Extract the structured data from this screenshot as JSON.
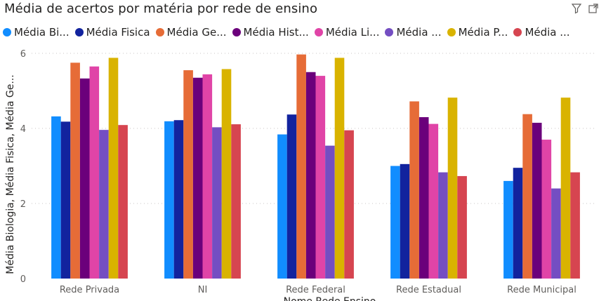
{
  "title": "Média de acertos por matéria por rede de ensino",
  "header_icons": [
    "filter-icon",
    "focus-mode-icon"
  ],
  "legend": [
    "Média Bi...",
    "Média Fisica",
    "Média Ge...",
    "Média Hist...",
    "Média Li...",
    "Média ...",
    "Média P...",
    "Média ..."
  ],
  "chart_data": {
    "type": "bar",
    "categories": [
      "Rede Privada",
      "NI",
      "Rede Federal",
      "Rede Estadual",
      "Rede Municipal"
    ],
    "ylabel": "Média Biologia, Média Fisica, Média Ge...",
    "xlabel": "Nome Rede Ensino",
    "ylim": [
      0,
      6
    ],
    "yticks": [
      0,
      2,
      4,
      6
    ],
    "grid": true,
    "legend_position": "top-left",
    "series": [
      {
        "color": "#118DFF",
        "values": [
          4.32,
          4.19,
          3.84,
          3.0,
          2.6
        ]
      },
      {
        "color": "#12239E",
        "values": [
          4.18,
          4.22,
          4.37,
          3.05,
          2.95
        ]
      },
      {
        "color": "#E66C37",
        "values": [
          5.75,
          5.55,
          5.97,
          4.72,
          4.38
        ]
      },
      {
        "color": "#6B007B",
        "values": [
          5.33,
          5.35,
          5.5,
          4.3,
          4.15
        ]
      },
      {
        "color": "#E044A7",
        "values": [
          5.65,
          5.44,
          5.4,
          4.12,
          3.7
        ]
      },
      {
        "color": "#744EC2",
        "values": [
          3.96,
          4.03,
          3.54,
          2.83,
          2.4
        ]
      },
      {
        "color": "#D9B300",
        "values": [
          5.88,
          5.58,
          5.88,
          4.82,
          4.82
        ]
      },
      {
        "color": "#D64550",
        "values": [
          4.09,
          4.11,
          3.95,
          2.73,
          2.83
        ]
      }
    ]
  }
}
